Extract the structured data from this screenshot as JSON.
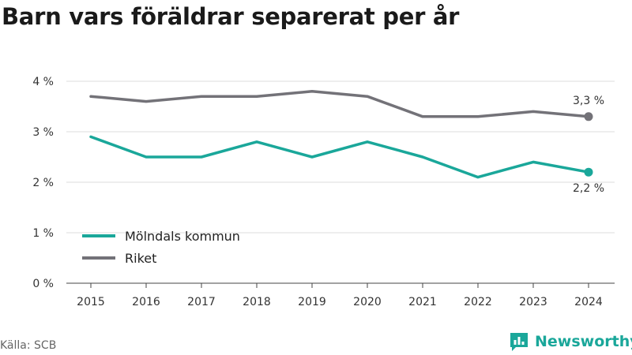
{
  "title": "Barn vars föräldrar separerat per år",
  "source": "Källa: SCB",
  "brand": {
    "name": "Newsworthy",
    "icon": "newsworthy-logo-icon",
    "color": "#1aa79a"
  },
  "chart_data": {
    "type": "line",
    "title": "Barn vars föräldrar separerat per år",
    "x": [
      2015,
      2016,
      2017,
      2018,
      2019,
      2020,
      2021,
      2022,
      2023,
      2024
    ],
    "x_tick_labels": [
      "2015",
      "2016",
      "2017",
      "2018",
      "2019",
      "2020",
      "2021",
      "2022",
      "2023",
      "2024"
    ],
    "ylim": [
      0,
      4
    ],
    "y_ticks": [
      0,
      1,
      2,
      3,
      4
    ],
    "y_tick_labels": [
      "0 %",
      "1 %",
      "2 %",
      "3 %",
      "4 %"
    ],
    "grid": true,
    "legend_position": "bottom-left",
    "series": [
      {
        "name": "Mölndals kommun",
        "color": "#1aa79a",
        "values": [
          2.9,
          2.5,
          2.5,
          2.8,
          2.5,
          2.8,
          2.5,
          2.1,
          2.4,
          2.2
        ],
        "end_label": "2,2 %"
      },
      {
        "name": "Riket",
        "color": "#737278",
        "values": [
          3.7,
          3.6,
          3.7,
          3.7,
          3.8,
          3.7,
          3.3,
          3.3,
          3.4,
          3.3
        ],
        "end_label": "3,3 %"
      }
    ]
  }
}
